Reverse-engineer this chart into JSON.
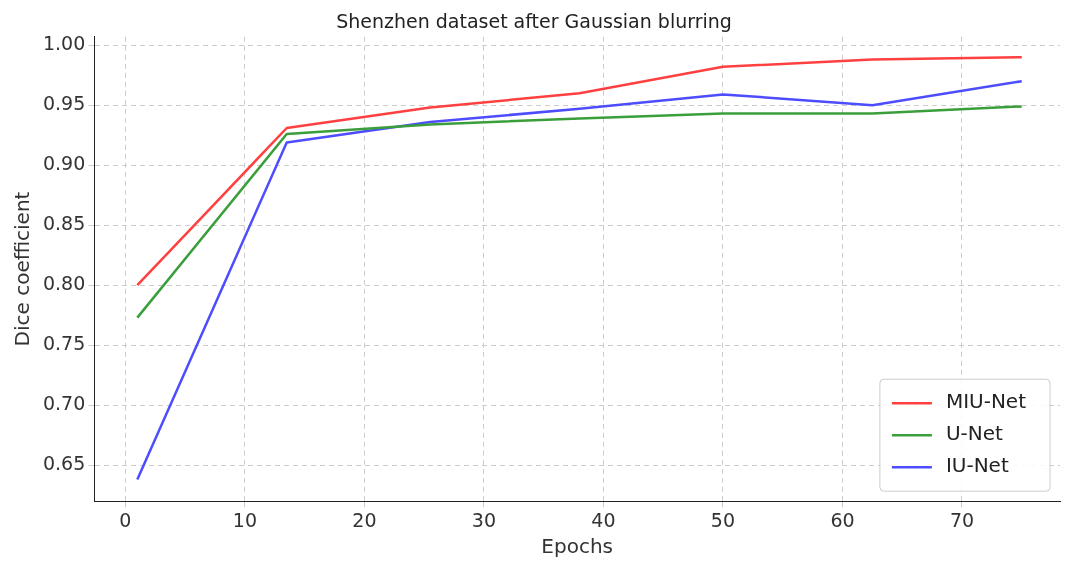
{
  "chart_data": {
    "type": "line",
    "title": "Shenzhen dataset after Gaussian blurring",
    "xlabel": "Epochs",
    "ylabel": "Dice coefficient",
    "x": [
      1,
      13.5,
      25.5,
      38,
      50,
      62.5,
      75
    ],
    "series": [
      {
        "name": "MIU-Net",
        "color": "#ff4040",
        "values": [
          0.8,
          0.931,
          0.948,
          0.96,
          0.982,
          0.988,
          0.99
        ]
      },
      {
        "name": "U-Net",
        "color": "#3a9e3a",
        "values": [
          0.773,
          0.926,
          0.934,
          0.939,
          0.943,
          0.943,
          0.949
        ]
      },
      {
        "name": "IU-Net",
        "color": "#4d4dff",
        "values": [
          0.638,
          0.919,
          0.936,
          0.947,
          0.959,
          0.95,
          0.97
        ]
      }
    ],
    "xlim": [
      -2.6,
      78.2
    ],
    "xticks": [
      0,
      10,
      20,
      30,
      40,
      50,
      60,
      70
    ],
    "ylim": [
      0.62,
      1.007
    ],
    "yticks": [
      {
        "value": 0.65,
        "label": "0.65"
      },
      {
        "value": 0.7,
        "label": "0.70"
      },
      {
        "value": 0.75,
        "label": "0.75"
      },
      {
        "value": 0.8,
        "label": "0.80"
      },
      {
        "value": 0.85,
        "label": "0.85"
      },
      {
        "value": 0.9,
        "label": "0.90"
      },
      {
        "value": 0.95,
        "label": "0.95"
      },
      {
        "value": 1,
        "label": "1.00"
      }
    ],
    "grid": true,
    "legend": "bottom right",
    "marker": "none",
    "line_style": "solid"
  }
}
